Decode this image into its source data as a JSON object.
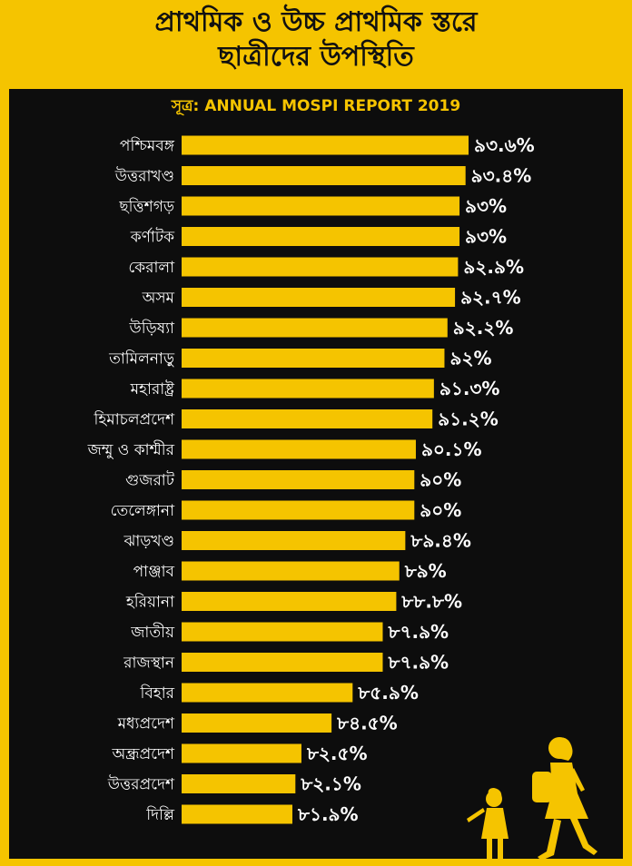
{
  "header": {
    "title_line1": "প্রাথমিক ও উচ্চ প্রাথমিক স্তরে",
    "title_line2": "ছাত্রীদের উপস্থিতি"
  },
  "source": "সূত্র: ANNUAL MOSPI REPORT 2019",
  "colors": {
    "background": "#f5c400",
    "panel": "#0d0d0d",
    "bar": "#f5c400",
    "text": "#ffffff"
  },
  "illustration": "girls-walking-silhouette",
  "chart_data": {
    "type": "bar",
    "orientation": "horizontal",
    "title": "প্রাথমিক ও উচ্চ প্রাথমিক স্তরে ছাত্রীদের উপস্থিতি",
    "xlabel": "",
    "ylabel": "",
    "xlim": [
      0,
      100
    ],
    "grid": false,
    "categories": [
      "পশ্চিমবঙ্গ",
      "উত্তরাখণ্ড",
      "ছত্তিশগড়",
      "কর্ণাটক",
      "কেরালা",
      "অসম",
      "উড়িষ্যা",
      "তামিলনাড়ু",
      "মহারাষ্ট্র",
      "হিমাচলপ্রদেশ",
      "জম্মু ও কাশ্মীর",
      "গুজরাট",
      "তেলেঙ্গানা",
      "ঝাড়খণ্ড",
      "পাঞ্জাব",
      "হরিয়ানা",
      "জাতীয়",
      "রাজস্থান",
      "বিহার",
      "মধ্যপ্রদেশ",
      "অন্ধ্রপ্রদেশ",
      "উত্তরপ্রদেশ",
      "দিল্লি"
    ],
    "values": [
      93.6,
      93.4,
      93,
      93,
      92.9,
      92.7,
      92.2,
      92,
      91.3,
      91.2,
      90.1,
      90,
      90,
      89.4,
      89,
      88.8,
      87.9,
      87.9,
      85.9,
      84.5,
      82.5,
      82.1,
      81.9
    ],
    "value_labels": [
      "৯৩.৬%",
      "৯৩.৪%",
      "৯৩%",
      "৯৩%",
      "৯২.৯%",
      "৯২.৭%",
      "৯২.২%",
      "৯২%",
      "৯১.৩%",
      "৯১.২%",
      "৯০.১%",
      "৯০%",
      "৯০%",
      "৮৯.৪%",
      "৮৯%",
      "৮৮.৮%",
      "৮৭.৯%",
      "৮৭.৯%",
      "৮৫.৯%",
      "৮৪.৫%",
      "৮২.৫%",
      "৮২.১%",
      "৮১.৯%"
    ]
  }
}
